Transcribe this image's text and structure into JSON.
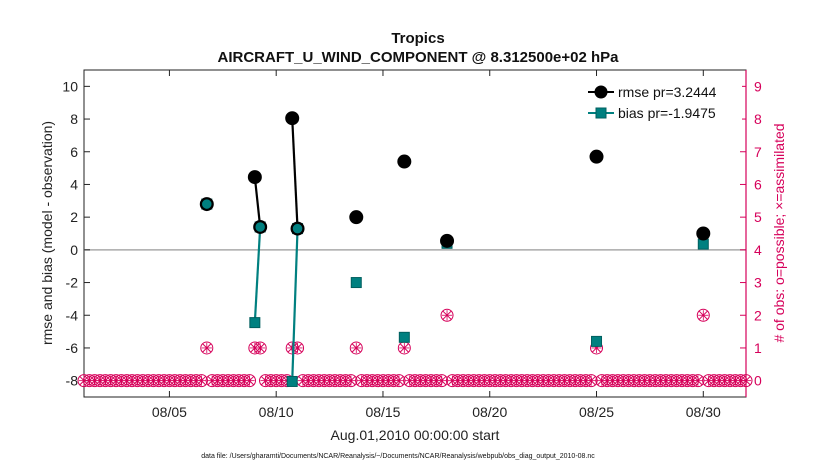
{
  "chart_data": {
    "type": "line",
    "title": "Tropics",
    "subtitle": "AIRCRAFT_U_WIND_COMPONENT @ 8.312500e+02 hPa",
    "xlabel": "Aug.01,2010 00:00:00 start",
    "ylabel": "rmse and bias (model - observation)",
    "ylabel_right": "# of obs: o=possible; ×=assimilated",
    "xlim": [
      1,
      32
    ],
    "ylim": [
      -9,
      11
    ],
    "ylim_right": [
      -0.5,
      9.5
    ],
    "x_ticks": [
      5,
      10,
      15,
      20,
      25,
      30
    ],
    "x_tick_labels": [
      "08/05",
      "08/10",
      "08/15",
      "08/20",
      "08/25",
      "08/30"
    ],
    "y_ticks": [
      -8,
      -6,
      -4,
      -2,
      0,
      2,
      4,
      6,
      8,
      10
    ],
    "y_tick_labels": [
      "-8",
      "-6",
      "-4",
      "-2",
      "0",
      "2",
      "4",
      "6",
      "8",
      "10"
    ],
    "y_right_ticks": [
      0,
      1,
      2,
      3,
      4,
      5,
      6,
      7,
      8,
      9
    ],
    "y_right_tick_labels": [
      "0",
      "1",
      "2",
      "3",
      "4",
      "5",
      "6",
      "7",
      "8",
      "9"
    ],
    "zero_line": 0,
    "legend_position": "top-right",
    "series": [
      {
        "name": "rmse pr=3.2444",
        "color": "#000000",
        "marker": "circle",
        "points": [
          [
            6.75,
            2.8
          ],
          [
            9.0,
            4.45
          ],
          [
            9.25,
            1.4
          ],
          [
            10.75,
            8.05
          ],
          [
            11.0,
            1.3
          ],
          [
            13.75,
            2.0
          ],
          [
            16.0,
            5.4
          ],
          [
            18.0,
            0.55
          ],
          [
            25.0,
            5.7
          ],
          [
            30.0,
            1.0
          ]
        ],
        "lines": [
          [
            [
              9.0,
              4.45
            ],
            [
              9.25,
              1.4
            ]
          ],
          [
            [
              10.75,
              8.05
            ],
            [
              11.0,
              1.3
            ]
          ]
        ]
      },
      {
        "name": "bias pr=-1.9475",
        "color": "#008080",
        "marker": "square",
        "points": [
          [
            6.75,
            2.8
          ],
          [
            9.0,
            -4.45
          ],
          [
            9.25,
            1.4
          ],
          [
            10.75,
            -8.05
          ],
          [
            11.0,
            1.3
          ],
          [
            13.75,
            -2.0
          ],
          [
            16.0,
            -5.35
          ],
          [
            18.0,
            0.4
          ],
          [
            25.0,
            -5.6
          ],
          [
            30.0,
            0.35
          ]
        ],
        "lines": [
          [
            [
              9.0,
              -4.45
            ],
            [
              9.25,
              1.4
            ]
          ],
          [
            [
              10.75,
              -8.05
            ],
            [
              11.0,
              1.3
            ]
          ]
        ]
      }
    ],
    "obs_counts": {
      "color": "#d6005a",
      "possible_and_assimilated": [
        [
          6.75,
          1
        ],
        [
          9.0,
          1
        ],
        [
          9.25,
          1
        ],
        [
          10.75,
          1
        ],
        [
          11.0,
          1
        ],
        [
          13.75,
          1
        ],
        [
          16.0,
          1
        ],
        [
          18.0,
          2
        ],
        [
          25.0,
          1
        ],
        [
          30.0,
          2
        ]
      ],
      "zero_spacing_days": 0.25
    }
  },
  "footer": "data file: /Users/gharamti/Documents/NCAR/Reanalysis/~/Documents/NCAR/Reanalysis/webpub/obs_diag_output_2010-08.nc"
}
